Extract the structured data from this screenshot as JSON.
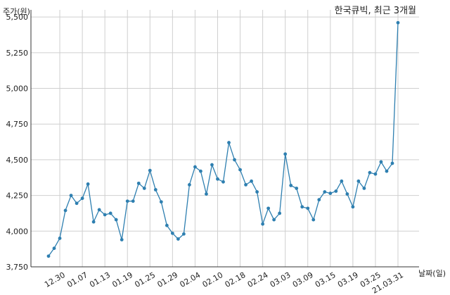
{
  "chart_data": {
    "type": "line",
    "title": "한국큐빅, 최근 3개월",
    "ylabel": "주가(원)",
    "xlabel": "날짜(일)",
    "ylim": [
      3750,
      5550
    ],
    "yticks": [
      3750,
      4000,
      4250,
      4500,
      4750,
      5000,
      5250,
      5500
    ],
    "ytick_labels": [
      "3,750",
      "4,000",
      "4,250",
      "4,500",
      "4,750",
      "5,000",
      "5,250",
      "5,500"
    ],
    "grid": true,
    "color": "#2e7fb0",
    "xtick_labels": [
      {
        "label": "12.30",
        "index": 2
      },
      {
        "label": "01.07",
        "index": 6
      },
      {
        "label": "01.13",
        "index": 10
      },
      {
        "label": "01.19",
        "index": 14
      },
      {
        "label": "01.25",
        "index": 18
      },
      {
        "label": "01.29",
        "index": 22
      },
      {
        "label": "02.04",
        "index": 26
      },
      {
        "label": "02.10",
        "index": 30
      },
      {
        "label": "02.18",
        "index": 34
      },
      {
        "label": "02.24",
        "index": 38
      },
      {
        "label": "03.03",
        "index": 42
      },
      {
        "label": "03.09",
        "index": 46
      },
      {
        "label": "03.15",
        "index": 50
      },
      {
        "label": "03.19",
        "index": 54
      },
      {
        "label": "03.25",
        "index": 58
      },
      {
        "label": "21.03.31",
        "index": 62
      }
    ],
    "values": [
      3825,
      3880,
      3950,
      4145,
      4250,
      4195,
      4230,
      4330,
      4065,
      4150,
      4115,
      4125,
      4080,
      3940,
      4210,
      4210,
      4335,
      4300,
      4425,
      4290,
      4205,
      4040,
      3985,
      3945,
      3980,
      4325,
      4450,
      4420,
      4260,
      4465,
      4365,
      4345,
      4620,
      4500,
      4430,
      4325,
      4350,
      4275,
      4050,
      4160,
      4080,
      4125,
      4540,
      4320,
      4300,
      4170,
      4160,
      4080,
      4220,
      4275,
      4265,
      4280,
      4350,
      4260,
      4170,
      4350,
      4300,
      4410,
      4400,
      4485,
      4420,
      4475,
      5460
    ]
  }
}
